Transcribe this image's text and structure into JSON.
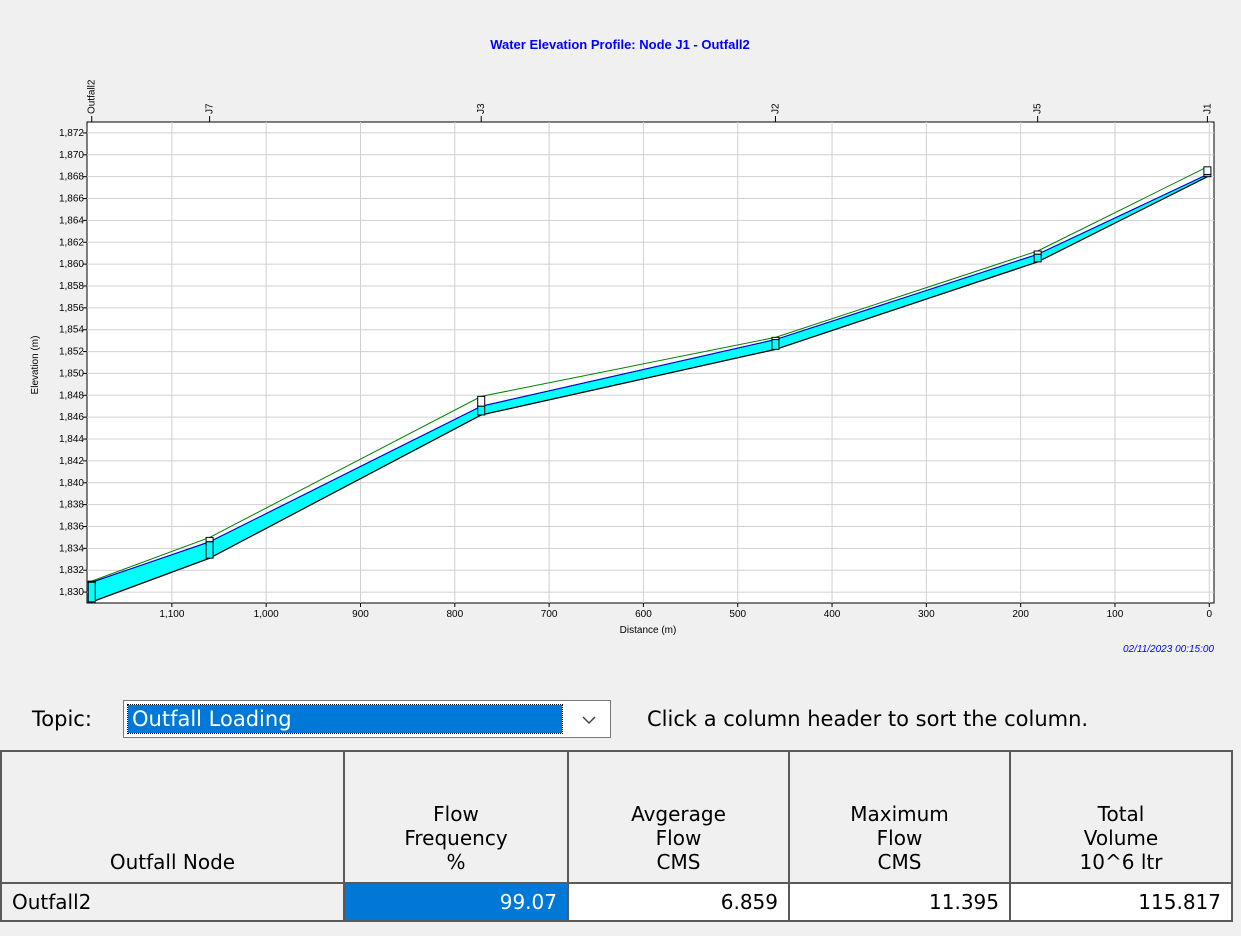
{
  "chart_data": {
    "type": "area",
    "title": "Water Elevation Profile: Node J1 - Outfall2",
    "xlabel": "Distance (m)",
    "ylabel": "Elevation (m)",
    "timestamp": "02/11/2023 00:15:00",
    "xlim": [
      1190,
      -5
    ],
    "ylim": [
      1829,
      1873
    ],
    "x_ticks": [
      1100,
      1000,
      900,
      800,
      700,
      600,
      500,
      400,
      300,
      200,
      100,
      0
    ],
    "x_tick_labels": [
      "1,100",
      "1,000",
      "900",
      "800",
      "700",
      "600",
      "500",
      "400",
      "300",
      "200",
      "100",
      "0"
    ],
    "y_ticks": [
      1830,
      1832,
      1834,
      1836,
      1838,
      1840,
      1842,
      1844,
      1846,
      1848,
      1850,
      1852,
      1854,
      1856,
      1858,
      1860,
      1862,
      1864,
      1866,
      1868,
      1870,
      1872
    ],
    "y_tick_labels": [
      "1,830",
      "1,832",
      "1,834",
      "1,836",
      "1,838",
      "1,840",
      "1,842",
      "1,844",
      "1,846",
      "1,848",
      "1,850",
      "1,852",
      "1,854",
      "1,856",
      "1,858",
      "1,860",
      "1,862",
      "1,864",
      "1,866",
      "1,868",
      "1,870",
      "1,872"
    ],
    "grid": true,
    "nodes": [
      {
        "name": "Outfall2",
        "distance": 1185,
        "invert": 1829.1,
        "water": 1830.9,
        "ground": 1831.0
      },
      {
        "name": "J7",
        "distance": 1060,
        "invert": 1833.1,
        "water": 1834.6,
        "ground": 1835.0
      },
      {
        "name": "J3",
        "distance": 772,
        "invert": 1846.2,
        "water": 1847.0,
        "ground": 1847.9
      },
      {
        "name": "J2",
        "distance": 460,
        "invert": 1852.2,
        "water": 1853.1,
        "ground": 1853.3
      },
      {
        "name": "J5",
        "distance": 182,
        "invert": 1860.2,
        "water": 1860.9,
        "ground": 1861.2
      },
      {
        "name": "J1",
        "distance": 2,
        "invert": 1868.0,
        "water": 1868.2,
        "ground": 1868.9
      }
    ],
    "colors": {
      "water": "#00ffff",
      "ground": "#008000",
      "hgl": "#0000ff",
      "title": "#0000ff",
      "timestamp": "#0000ff"
    }
  },
  "topic": {
    "label": "Topic:",
    "selected": "Outfall Loading",
    "hint": "Click a column header to sort the column.",
    "dropdown_icon": "chevron-down-icon"
  },
  "table": {
    "headers": [
      [
        "Outfall Node"
      ],
      [
        "Flow",
        "Frequency",
        "%"
      ],
      [
        "Avgerage",
        "Flow",
        "CMS"
      ],
      [
        "Maximum",
        "Flow",
        "CMS"
      ],
      [
        "Total",
        "Volume",
        "10^6 ltr"
      ]
    ],
    "rows": [
      [
        "Outfall2",
        "99.07",
        "6.859",
        "11.395",
        "115.817"
      ]
    ]
  }
}
